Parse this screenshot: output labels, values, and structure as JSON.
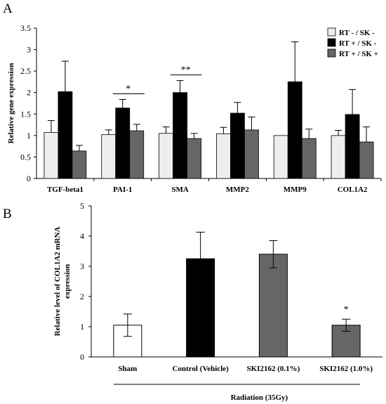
{
  "chart_data": [
    {
      "panel": "A",
      "type": "bar",
      "ylabel": "Relative gene expression",
      "ylim": [
        0,
        3.5
      ],
      "yticks": [
        "0",
        "0.5",
        "1",
        "1.5",
        "2",
        "2.5",
        "3",
        "3.5"
      ],
      "categories": [
        "TGF-beta1",
        "PAI-1",
        "SMA",
        "MMP2",
        "MMP9",
        "COL1A2"
      ],
      "legend_position": "top-right",
      "series": [
        {
          "name": "RT - / SK -",
          "color": "#eeeeee",
          "values": [
            1.07,
            1.02,
            1.05,
            1.04,
            1.0,
            1.0
          ],
          "errors": [
            0.28,
            0.11,
            0.15,
            0.15,
            0.0,
            0.12
          ]
        },
        {
          "name": "RT + / SK -",
          "color": "#000000",
          "values": [
            2.02,
            1.64,
            2.0,
            1.52,
            2.25,
            1.49
          ],
          "errors": [
            0.71,
            0.2,
            0.28,
            0.25,
            0.93,
            0.58
          ]
        },
        {
          "name": "RT + / SK +",
          "color": "#666666",
          "values": [
            0.64,
            1.11,
            0.93,
            1.13,
            0.93,
            0.85
          ],
          "errors": [
            0.13,
            0.15,
            0.12,
            0.3,
            0.22,
            0.35
          ]
        }
      ],
      "significance": [
        {
          "category": "PAI-1",
          "label": "*"
        },
        {
          "category": "SMA",
          "label": "**"
        }
      ]
    },
    {
      "panel": "B",
      "type": "bar",
      "ylabel": "Relative level of COL1A2 mRNA expression",
      "ylim": [
        0,
        5
      ],
      "yticks": [
        "0",
        "1",
        "2",
        "3",
        "4",
        "5"
      ],
      "categories": [
        "Sham",
        "Control (Vehicle)",
        "SKI2162 (0.1%)",
        "SKI2162 (1.0%)"
      ],
      "values": [
        1.05,
        3.25,
        3.4,
        1.05
      ],
      "errors": [
        0.37,
        0.88,
        0.45,
        0.2
      ],
      "colors": [
        "#ffffff",
        "#000000",
        "#666666",
        "#666666"
      ],
      "significance": [
        {
          "category": "SKI2162 (1.0%)",
          "label": "*"
        }
      ],
      "group_label": "Radiation (35Gy)"
    }
  ]
}
